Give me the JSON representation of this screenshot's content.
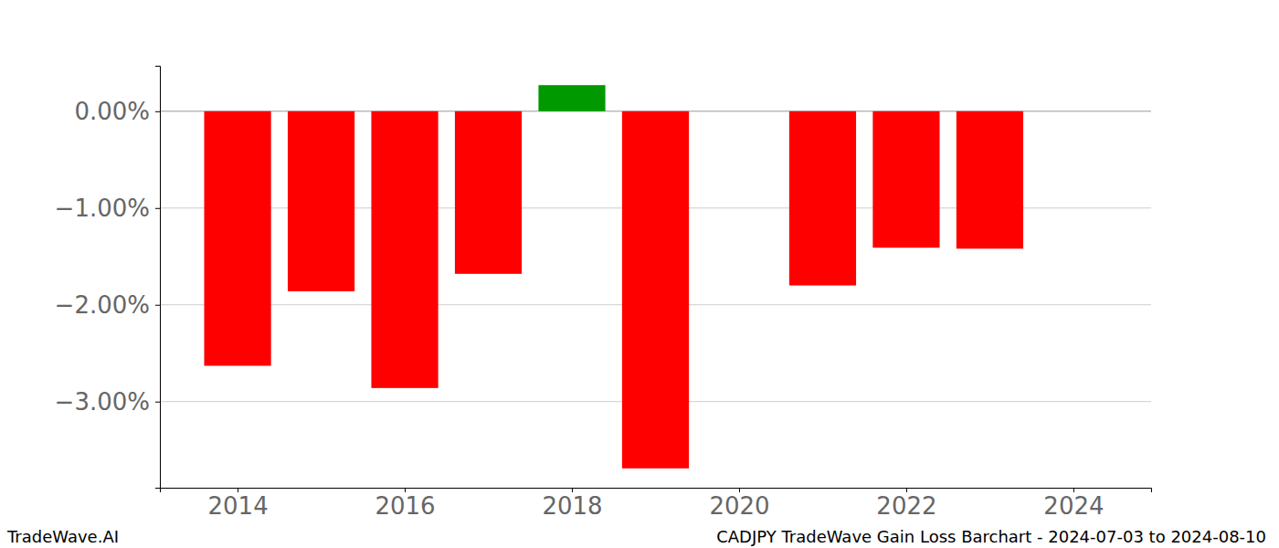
{
  "chart_data": {
    "type": "bar",
    "title": "CADJPY TradeWave Gain Loss Barchart - 2024-07-03 to 2024-08-10",
    "annotations": [
      "TradeWave.AI"
    ],
    "x": [
      2014,
      2015,
      2016,
      2017,
      2018,
      2019,
      2020,
      2021,
      2022,
      2023
    ],
    "values": [
      -2.63,
      -1.86,
      -2.86,
      -1.68,
      0.27,
      -3.69,
      null,
      -1.8,
      -1.41,
      -1.42
    ],
    "colors": [
      "#ff0000",
      "#ff0000",
      "#ff0000",
      "#ff0000",
      "#009900",
      "#ff0000",
      "#ff0000",
      "#ff0000",
      "#ff0000",
      "#ff0000"
    ],
    "xlim": [
      2013.07,
      2024.93
    ],
    "xticks": [
      2014,
      2016,
      2018,
      2020,
      2022,
      2024
    ],
    "ylim": [
      -3.89,
      0.47
    ],
    "yticks": [
      {
        "value": 0,
        "label": "0.00%"
      },
      {
        "value": -1,
        "label": "−1.00%"
      },
      {
        "value": -2,
        "label": "−2.00%"
      },
      {
        "value": -3,
        "label": "−3.00%"
      }
    ],
    "grid": true
  }
}
